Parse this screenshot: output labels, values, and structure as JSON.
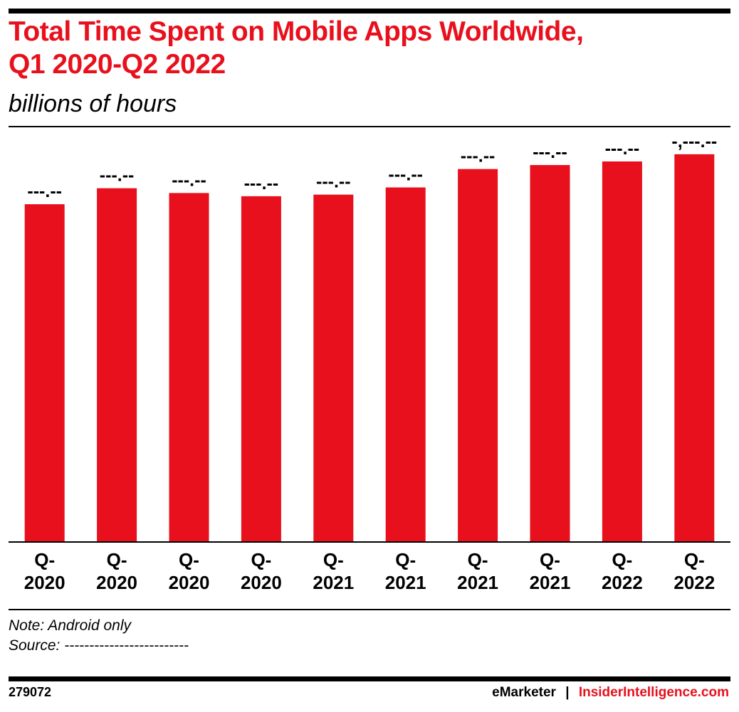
{
  "header": {
    "title_line1": "Total Time Spent on Mobile Apps Worldwide,",
    "title_line2": "Q1 2020-Q2 2022",
    "subtitle": "billions of hours"
  },
  "colors": {
    "accent": "#e8101c",
    "bar": "#e8101c",
    "text": "#000000"
  },
  "chart_data": {
    "type": "bar",
    "title": "Total Time Spent on Mobile Apps Worldwide, Q1 2020-Q2 2022",
    "ylabel": "billions of hours",
    "categories": [
      [
        "Q-",
        "2020"
      ],
      [
        "Q-",
        "2020"
      ],
      [
        "Q-",
        "2020"
      ],
      [
        "Q-",
        "2020"
      ],
      [
        "Q-",
        "2021"
      ],
      [
        "Q-",
        "2021"
      ],
      [
        "Q-",
        "2021"
      ],
      [
        "Q-",
        "2021"
      ],
      [
        "Q-",
        "2022"
      ],
      [
        "Q-",
        "2022"
      ]
    ],
    "values": [
      845,
      885,
      873,
      865,
      869,
      887,
      933,
      943,
      952,
      970
    ],
    "data_labels": [
      "---.--",
      "---.--",
      "---.--",
      "---.--",
      "---.--",
      "---.--",
      "---.--",
      "---.--",
      "---.--",
      "-,---.--"
    ],
    "ylim": [
      0,
      1000
    ],
    "grid": false,
    "legend": "none"
  },
  "footer": {
    "note": "Note: Android only",
    "source": "Source: -------------------------",
    "chart_id": "279072",
    "brand_emarketer": "eMarketer",
    "brand_separator": "|",
    "brand_insider": "InsiderIntelligence.com"
  }
}
